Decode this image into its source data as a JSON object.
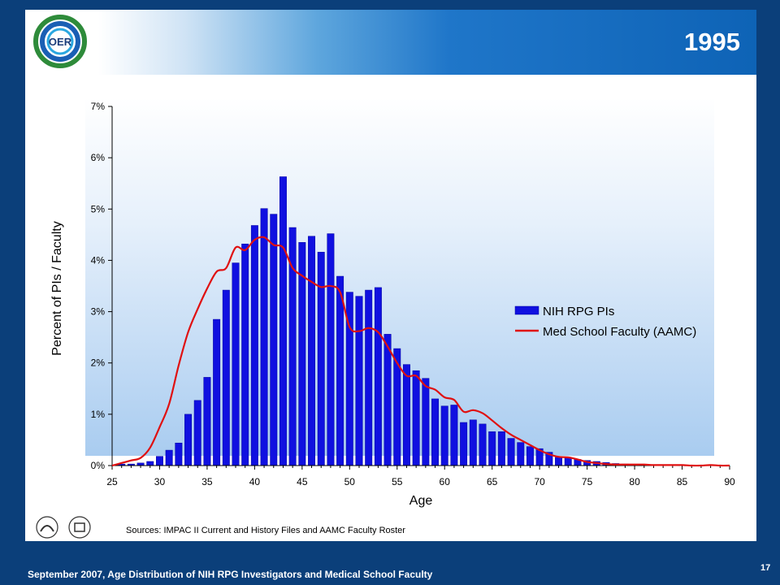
{
  "slide": {
    "year": "1995",
    "logo_text": "OER",
    "source_note": "Sources:  IMPAC II Current  and History Files and AAMC Faculty Roster",
    "footer_text": "September 2007, Age Distribution of NIH RPG Investigators and Medical School Faculty",
    "page_number": "17"
  },
  "colors": {
    "bar_fill": "#1010e0",
    "bar_edge": "#0000a0",
    "line": "#e01010",
    "banner_dark": "#0b3f7a"
  },
  "chart_data": {
    "type": "bar",
    "title": "1995",
    "xlabel": "Age",
    "ylabel": "Percent of PIs / Faculty",
    "xlim": [
      25,
      90
    ],
    "ylim": [
      0,
      7
    ],
    "x_ticks": [
      "25",
      "30",
      "35",
      "40",
      "45",
      "50",
      "55",
      "60",
      "65",
      "70",
      "75",
      "80",
      "85",
      "90"
    ],
    "y_ticks": [
      "0%",
      "1%",
      "2%",
      "3%",
      "4%",
      "5%",
      "6%",
      "7%"
    ],
    "grid": false,
    "legend_position": "right-middle",
    "categories": [
      26,
      27,
      28,
      29,
      30,
      31,
      32,
      33,
      34,
      35,
      36,
      37,
      38,
      39,
      40,
      41,
      42,
      43,
      44,
      45,
      46,
      47,
      48,
      49,
      50,
      51,
      52,
      53,
      54,
      55,
      56,
      57,
      58,
      59,
      60,
      61,
      62,
      63,
      64,
      65,
      66,
      67,
      68,
      69,
      70,
      71,
      72,
      73,
      74,
      75,
      76,
      77,
      78,
      79,
      80,
      81,
      82,
      83,
      84,
      85,
      86,
      87,
      88,
      89
    ],
    "series": [
      {
        "name": "NIH RPG PIs",
        "type": "bar",
        "values": [
          0.03,
          0.03,
          0.05,
          0.08,
          0.18,
          0.3,
          0.44,
          1.0,
          1.27,
          1.72,
          2.85,
          3.42,
          3.95,
          4.32,
          4.68,
          5.01,
          4.9,
          5.63,
          4.64,
          4.35,
          4.47,
          4.16,
          4.52,
          3.69,
          3.38,
          3.3,
          3.42,
          3.47,
          2.56,
          2.28,
          1.97,
          1.85,
          1.7,
          1.3,
          1.16,
          1.18,
          0.84,
          0.89,
          0.81,
          0.66,
          0.66,
          0.53,
          0.45,
          0.37,
          0.33,
          0.26,
          0.16,
          0.16,
          0.12,
          0.1,
          0.08,
          0.06,
          0.04,
          0.03,
          0.02,
          0.02,
          0.01,
          0.01,
          0.01,
          0.01,
          0.0,
          0.0,
          0.0,
          0.0
        ]
      },
      {
        "name": "Med School Faculty (AAMC)",
        "type": "line",
        "x": [
          25,
          26,
          27,
          28,
          29,
          30,
          31,
          32,
          33,
          34,
          35,
          36,
          37,
          38,
          39,
          40,
          41,
          42,
          43,
          44,
          45,
          46,
          47,
          48,
          49,
          50,
          51,
          52,
          53,
          54,
          55,
          56,
          57,
          58,
          59,
          60,
          61,
          62,
          63,
          64,
          65,
          66,
          67,
          68,
          69,
          70,
          71,
          72,
          73,
          74,
          75,
          76,
          77,
          78,
          79,
          80,
          81,
          82,
          83,
          84,
          85,
          86,
          87,
          88,
          89,
          90
        ],
        "values": [
          0.0,
          0.05,
          0.1,
          0.15,
          0.35,
          0.75,
          1.2,
          1.95,
          2.6,
          3.05,
          3.45,
          3.78,
          3.85,
          4.25,
          4.2,
          4.4,
          4.45,
          4.3,
          4.25,
          3.85,
          3.7,
          3.58,
          3.48,
          3.5,
          3.38,
          2.7,
          2.62,
          2.68,
          2.6,
          2.32,
          2.0,
          1.75,
          1.75,
          1.55,
          1.48,
          1.33,
          1.28,
          1.05,
          1.08,
          1.02,
          0.88,
          0.73,
          0.6,
          0.5,
          0.4,
          0.3,
          0.22,
          0.17,
          0.16,
          0.12,
          0.07,
          0.05,
          0.03,
          0.02,
          0.02,
          0.02,
          0.02,
          0.01,
          0.01,
          0.01,
          0.01,
          0.0,
          0.0,
          0.01,
          0.0,
          0.0
        ]
      }
    ]
  }
}
